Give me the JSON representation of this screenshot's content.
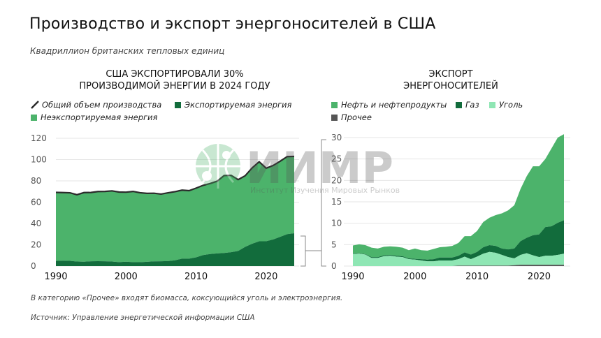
{
  "header": {
    "title": "Производство и экспорт энергоносителей в США",
    "subtitle": "Квадриллион британских тепловых единиц"
  },
  "watermark": {
    "text": "ИИМР",
    "subtext": "Институт Изучения Мировых Рынков"
  },
  "colors": {
    "non_exported": "#4cb36b",
    "exported": "#126c3c",
    "total_line": "#2b2b2b",
    "oil": "#4cb36b",
    "gas": "#126c3c",
    "coal": "#8fe6b4",
    "other": "#555555"
  },
  "chart_data": [
    {
      "type": "area",
      "title": "США ЭКСПОРТИРОВАЛИ 30%\nПРОИЗВОДИМОЙ ЭНЕРГИИ В 2024 ГОДУ",
      "title_lines": [
        "США ЭКСПОРТИРОВАЛИ 30%",
        "ПРОИЗВОДИМОЙ ЭНЕРГИИ В 2024 ГОДУ"
      ],
      "legend": {
        "total": "Общий объем производства",
        "exported": "Экспортируемая энергия",
        "non_exported": "Неэкспортируемая энергия"
      },
      "x": [
        1990,
        1991,
        1992,
        1993,
        1994,
        1995,
        1996,
        1997,
        1998,
        1999,
        2000,
        2001,
        2002,
        2003,
        2004,
        2005,
        2006,
        2007,
        2008,
        2009,
        2010,
        2011,
        2012,
        2013,
        2014,
        2015,
        2016,
        2017,
        2018,
        2019,
        2020,
        2021,
        2022,
        2023,
        2024
      ],
      "series": [
        {
          "name": "Общий объем производства",
          "values": [
            69.2,
            69.0,
            68.8,
            67.0,
            69.0,
            69.1,
            70.0,
            70.1,
            70.6,
            69.5,
            69.4,
            70.1,
            68.9,
            68.3,
            68.4,
            67.6,
            68.8,
            69.9,
            71.3,
            70.8,
            73.2,
            75.8,
            77.5,
            79.7,
            85.0,
            85.2,
            81.2,
            84.8,
            92.2,
            98.0,
            91.9,
            94.5,
            98.5,
            102.8,
            103.0
          ]
        },
        {
          "name": "Экспортируемая энергия",
          "values": [
            4.8,
            5.1,
            4.9,
            4.3,
            4.1,
            4.5,
            4.6,
            4.5,
            4.3,
            3.7,
            4.1,
            3.7,
            3.6,
            4.0,
            4.4,
            4.5,
            4.7,
            5.4,
            7.0,
            7.0,
            8.2,
            10.3,
            11.3,
            11.9,
            12.3,
            13.0,
            14.2,
            18.0,
            21.0,
            23.3,
            23.3,
            25.0,
            27.5,
            30.0,
            30.8
          ]
        }
      ],
      "xticks": [
        "1990",
        "2000",
        "2010",
        "2020"
      ],
      "yticks": [
        "0",
        "20",
        "40",
        "60",
        "80",
        "100",
        "120"
      ],
      "ylim": [
        0,
        120
      ],
      "grid": true
    },
    {
      "type": "area",
      "stacked": true,
      "title_lines": [
        "ЭКСПОРТ",
        "ЭНЕРГОНОСИТЕЛЕЙ"
      ],
      "legend": {
        "oil": "Нефть и нефтепродукты",
        "gas": "Газ",
        "coal": "Уголь",
        "other": "Прочее"
      },
      "x": [
        1990,
        1991,
        1992,
        1993,
        1994,
        1995,
        1996,
        1997,
        1998,
        1999,
        2000,
        2001,
        2002,
        2003,
        2004,
        2005,
        2006,
        2007,
        2008,
        2009,
        2010,
        2011,
        2012,
        2013,
        2014,
        2015,
        2016,
        2017,
        2018,
        2019,
        2020,
        2021,
        2022,
        2023,
        2024
      ],
      "series": [
        {
          "name": "Прочее",
          "values": [
            0,
            0,
            0,
            0,
            0,
            0,
            0,
            0,
            0,
            0,
            0,
            0,
            0,
            0,
            0,
            0,
            0,
            0.1,
            0.1,
            0.1,
            0.1,
            0.1,
            0.1,
            0.1,
            0.1,
            0.1,
            0.2,
            0.3,
            0.3,
            0.3,
            0.3,
            0.3,
            0.3,
            0.3,
            0.3
          ]
        },
        {
          "name": "Уголь",
          "values": [
            2.8,
            2.9,
            2.7,
            1.9,
            1.9,
            2.3,
            2.4,
            2.2,
            2.1,
            1.6,
            1.5,
            1.3,
            1.1,
            1.1,
            1.3,
            1.3,
            1.3,
            1.5,
            2.1,
            1.5,
            2.1,
            2.8,
            3.2,
            3.0,
            2.5,
            2.0,
            1.6,
            2.3,
            2.7,
            2.2,
            1.8,
            2.1,
            2.1,
            2.3,
            2.6
          ]
        },
        {
          "name": "Газ",
          "values": [
            0.1,
            0.1,
            0.1,
            0.2,
            0.2,
            0.2,
            0.2,
            0.2,
            0.2,
            0.2,
            0.2,
            0.3,
            0.4,
            0.5,
            0.7,
            0.7,
            0.7,
            0.8,
            1.0,
            1.1,
            1.1,
            1.5,
            1.6,
            1.6,
            1.5,
            1.8,
            2.3,
            3.2,
            3.6,
            4.7,
            5.3,
            6.7,
            6.9,
            7.5,
            7.8
          ]
        },
        {
          "name": "Нефть и нефтепродукты",
          "values": [
            1.9,
            2.1,
            2.1,
            2.2,
            2.0,
            2.0,
            2.0,
            2.1,
            2.0,
            1.9,
            2.4,
            2.1,
            2.1,
            2.4,
            2.4,
            2.5,
            2.7,
            3.0,
            3.8,
            4.3,
            4.9,
            5.9,
            6.4,
            7.2,
            8.2,
            9.1,
            10.1,
            12.2,
            14.4,
            16.1,
            15.9,
            15.9,
            18.2,
            19.9,
            20.1
          ]
        }
      ],
      "xticks": [
        "1990",
        "2000",
        "2010",
        "2020"
      ],
      "yticks": [
        "0",
        "5",
        "10",
        "15",
        "20",
        "25",
        "30"
      ],
      "ylim": [
        0,
        30
      ],
      "grid": true
    }
  ],
  "footer": {
    "note": "В категорию «Прочее» входят биомасса, коксующийся уголь и электроэнергия.",
    "source": "Источник: Управление энергетической информации США"
  }
}
